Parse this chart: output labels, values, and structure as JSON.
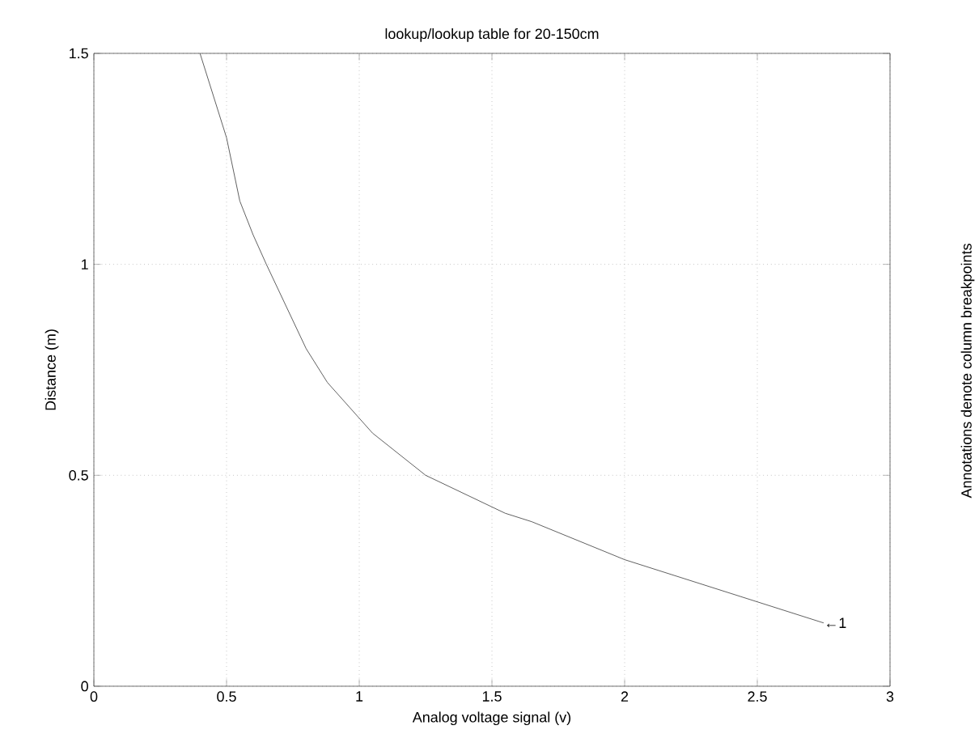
{
  "chart_data": {
    "type": "line",
    "title": "lookup/lookup table for 20-150cm",
    "xlabel": "Analog voltage signal (v)",
    "ylabel": "Distance (m)",
    "x": [
      0.4,
      0.45,
      0.5,
      0.55,
      0.6,
      0.65,
      0.8,
      0.88,
      1.05,
      1.25,
      1.55,
      1.65,
      2.0,
      2.5,
      2.75
    ],
    "series": [
      {
        "color": "#606060",
        "values": [
          1.5,
          1.4,
          1.3,
          1.15,
          1.07,
          1.0,
          0.8,
          0.72,
          0.6,
          0.5,
          0.41,
          0.39,
          0.3,
          0.2,
          0.15
        ]
      }
    ],
    "xlim": [
      0,
      3
    ],
    "ylim": [
      0,
      1.5
    ],
    "xticks": [
      0,
      0.5,
      1,
      1.5,
      2,
      2.5,
      3
    ],
    "yticks": [
      0,
      0.5,
      1,
      1.5
    ],
    "grid": true,
    "line_style": "solid",
    "annotations": [
      "Annotations denote column breakpoints",
      {
        "text": "←1",
        "x": 2.75,
        "y": 0.15
      }
    ]
  }
}
